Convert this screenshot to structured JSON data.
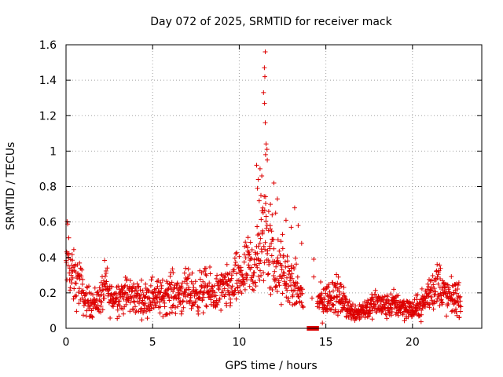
{
  "chart_data": {
    "type": "scatter",
    "title": "Day 072 of 2025, SRMTID for receiver mack",
    "xlabel": "GPS time / hours",
    "ylabel": "SRMTID / TECUs",
    "xlim": [
      0,
      24
    ],
    "ylim": [
      0,
      1.6
    ],
    "xticks": [
      0,
      5,
      10,
      15,
      20
    ],
    "yticks": [
      0,
      0.2,
      0.4,
      0.6,
      0.8,
      1,
      1.2,
      1.4,
      1.6
    ],
    "grid": true,
    "marker": "+",
    "color": "#dd0000",
    "series": [
      {
        "name": "SRMTID",
        "profile": [
          [
            0.0,
            0.3
          ],
          [
            0.1,
            0.44
          ],
          [
            0.3,
            0.3
          ],
          [
            0.6,
            0.25
          ],
          [
            0.8,
            0.27
          ],
          [
            1.0,
            0.17
          ],
          [
            1.5,
            0.14
          ],
          [
            2.0,
            0.17
          ],
          [
            2.3,
            0.25
          ],
          [
            2.5,
            0.17
          ],
          [
            3.0,
            0.18
          ],
          [
            3.5,
            0.19
          ],
          [
            4.0,
            0.18
          ],
          [
            4.5,
            0.16
          ],
          [
            5.0,
            0.19
          ],
          [
            5.5,
            0.17
          ],
          [
            6.0,
            0.21
          ],
          [
            6.5,
            0.19
          ],
          [
            7.0,
            0.21
          ],
          [
            7.5,
            0.19
          ],
          [
            8.0,
            0.22
          ],
          [
            8.5,
            0.19
          ],
          [
            9.0,
            0.21
          ],
          [
            9.5,
            0.23
          ],
          [
            10.0,
            0.28
          ],
          [
            10.5,
            0.33
          ],
          [
            11.0,
            0.36
          ],
          [
            11.3,
            0.45
          ],
          [
            11.5,
            0.6
          ],
          [
            11.7,
            0.42
          ],
          [
            12.0,
            0.35
          ],
          [
            12.5,
            0.3
          ],
          [
            13.0,
            0.26
          ],
          [
            13.5,
            0.2
          ],
          [
            13.7,
            0.16
          ]
        ],
        "profile_b": [
          [
            14.5,
            0.15
          ],
          [
            15.0,
            0.16
          ],
          [
            15.5,
            0.2
          ],
          [
            16.0,
            0.15
          ],
          [
            16.5,
            0.09
          ],
          [
            17.0,
            0.1
          ],
          [
            17.5,
            0.12
          ],
          [
            18.0,
            0.14
          ],
          [
            18.5,
            0.12
          ],
          [
            19.0,
            0.14
          ],
          [
            19.5,
            0.12
          ],
          [
            20.0,
            0.1
          ],
          [
            20.5,
            0.13
          ],
          [
            21.0,
            0.2
          ],
          [
            21.5,
            0.26
          ],
          [
            22.0,
            0.17
          ],
          [
            22.5,
            0.18
          ],
          [
            22.8,
            0.14
          ]
        ],
        "spikes": [
          [
            11.5,
            1.56
          ],
          [
            11.45,
            1.47
          ],
          [
            11.48,
            1.42
          ],
          [
            11.4,
            1.33
          ],
          [
            11.46,
            1.27
          ],
          [
            11.5,
            1.16
          ],
          [
            11.55,
            1.04
          ],
          [
            11.6,
            1.01
          ],
          [
            11.52,
            0.98
          ],
          [
            11.62,
            0.95
          ],
          [
            11.0,
            0.92
          ],
          [
            11.2,
            0.9
          ],
          [
            11.3,
            0.86
          ],
          [
            11.1,
            0.84
          ],
          [
            12.0,
            0.82
          ],
          [
            11.05,
            0.79
          ],
          [
            11.25,
            0.75
          ],
          [
            11.15,
            0.72
          ],
          [
            11.8,
            0.7
          ],
          [
            12.2,
            0.73
          ],
          [
            11.7,
            0.66
          ],
          [
            12.1,
            0.65
          ],
          [
            11.9,
            0.64
          ],
          [
            13.2,
            0.68
          ],
          [
            12.7,
            0.61
          ],
          [
            13.4,
            0.58
          ],
          [
            13.0,
            0.57
          ],
          [
            11.35,
            0.55
          ],
          [
            12.5,
            0.53
          ],
          [
            13.6,
            0.48
          ],
          [
            14.3,
            0.39
          ],
          [
            14.3,
            0.29
          ],
          [
            14.8,
            0.03
          ],
          [
            14.2,
            0.17
          ]
        ],
        "gap_marker": {
          "x_from": 13.9,
          "x_to": 14.6,
          "y": 0
        }
      }
    ]
  }
}
